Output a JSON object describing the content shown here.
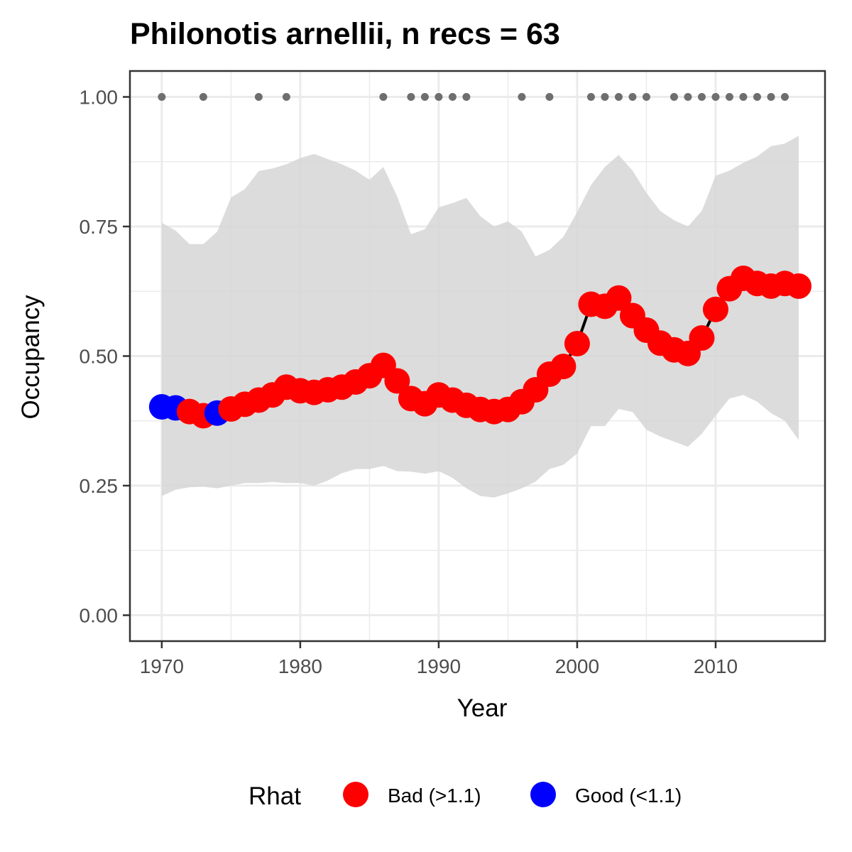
{
  "chart_data": {
    "type": "line",
    "title": "Philonotis arnellii, n recs = 63",
    "xlabel": "Year",
    "ylabel": "Occupancy",
    "xlim": [
      1967.7,
      2017.9
    ],
    "ylim": [
      -0.05,
      1.05
    ],
    "x_ticks": [
      1970,
      1980,
      1990,
      2000,
      2010
    ],
    "x_tick_labels": [
      "1970",
      "1980",
      "1990",
      "2000",
      "2010"
    ],
    "y_ticks": [
      0,
      0.25,
      0.5,
      0.75,
      1.0
    ],
    "y_tick_labels": [
      "0.00",
      "0.25",
      "0.50",
      "0.75",
      "1.00"
    ],
    "grid": true,
    "colors": {
      "bad": "#ff0000",
      "good": "#0000ff",
      "ribbon": "#d6d6d6",
      "line": "#000000",
      "record_dot": "#6e6e6e",
      "grid_major": "#ebebeb",
      "panel_border": "#333333"
    },
    "series": [
      {
        "x": [
          1970,
          1971,
          1972,
          1973,
          1974,
          1975,
          1976,
          1977,
          1978,
          1979,
          1980,
          1981,
          1982,
          1983,
          1984,
          1985,
          1986,
          1987,
          1988,
          1989,
          1990,
          1991,
          1992,
          1993,
          1994,
          1995,
          1996,
          1997,
          1998,
          1999,
          2000,
          2001,
          2002,
          2003,
          2004,
          2005,
          2006,
          2007,
          2008,
          2009,
          2010,
          2011,
          2012,
          2013,
          2014,
          2015,
          2016
        ],
        "y": [
          0.402,
          0.4,
          0.393,
          0.385,
          0.39,
          0.398,
          0.407,
          0.415,
          0.425,
          0.44,
          0.433,
          0.43,
          0.435,
          0.44,
          0.45,
          0.462,
          0.482,
          0.452,
          0.418,
          0.408,
          0.425,
          0.415,
          0.405,
          0.397,
          0.393,
          0.397,
          0.412,
          0.435,
          0.465,
          0.48,
          0.524,
          0.6,
          0.596,
          0.612,
          0.578,
          0.55,
          0.525,
          0.512,
          0.505,
          0.535,
          0.59,
          0.63,
          0.65,
          0.64,
          0.635,
          0.64,
          0.635
        ],
        "rhat": [
          "Good",
          "Good",
          "Bad",
          "Bad",
          "Good",
          "Bad",
          "Bad",
          "Bad",
          "Bad",
          "Bad",
          "Bad",
          "Bad",
          "Bad",
          "Bad",
          "Bad",
          "Bad",
          "Bad",
          "Bad",
          "Bad",
          "Bad",
          "Bad",
          "Bad",
          "Bad",
          "Bad",
          "Bad",
          "Bad",
          "Bad",
          "Bad",
          "Bad",
          "Bad",
          "Bad",
          "Bad",
          "Bad",
          "Bad",
          "Bad",
          "Bad",
          "Bad",
          "Bad",
          "Bad",
          "Bad",
          "Bad",
          "Bad",
          "Bad",
          "Bad",
          "Bad",
          "Bad",
          "Bad"
        ],
        "lower": [
          0.23,
          0.242,
          0.247,
          0.248,
          0.245,
          0.25,
          0.255,
          0.255,
          0.257,
          0.255,
          0.255,
          0.25,
          0.26,
          0.274,
          0.282,
          0.282,
          0.288,
          0.278,
          0.277,
          0.273,
          0.278,
          0.265,
          0.245,
          0.23,
          0.227,
          0.235,
          0.245,
          0.258,
          0.282,
          0.29,
          0.312,
          0.365,
          0.365,
          0.398,
          0.392,
          0.358,
          0.345,
          0.335,
          0.325,
          0.35,
          0.385,
          0.418,
          0.425,
          0.412,
          0.39,
          0.375,
          0.338
        ],
        "upper": [
          0.757,
          0.742,
          0.716,
          0.716,
          0.74,
          0.806,
          0.822,
          0.857,
          0.862,
          0.87,
          0.882,
          0.89,
          0.88,
          0.87,
          0.858,
          0.84,
          0.865,
          0.808,
          0.735,
          0.745,
          0.787,
          0.795,
          0.805,
          0.77,
          0.75,
          0.76,
          0.74,
          0.692,
          0.705,
          0.73,
          0.778,
          0.83,
          0.865,
          0.888,
          0.858,
          0.815,
          0.78,
          0.762,
          0.75,
          0.78,
          0.848,
          0.858,
          0.873,
          0.885,
          0.905,
          0.91,
          0.925
        ]
      }
    ],
    "records": {
      "y": 1.0,
      "x": [
        1970,
        1973,
        1977,
        1979,
        1986,
        1988,
        1989,
        1990,
        1991,
        1992,
        1996,
        1998,
        2001,
        2002,
        2003,
        2004,
        2005,
        2007,
        2008,
        2009,
        2010,
        2011,
        2012,
        2013,
        2014,
        2015
      ]
    },
    "legend": {
      "position": "bottom",
      "title": "Rhat",
      "entries": [
        {
          "key": "Bad",
          "label": "Bad (>1.1)",
          "color": "#ff0000"
        },
        {
          "key": "Good",
          "label": "Good (<1.1)",
          "color": "#0000ff"
        }
      ]
    }
  }
}
